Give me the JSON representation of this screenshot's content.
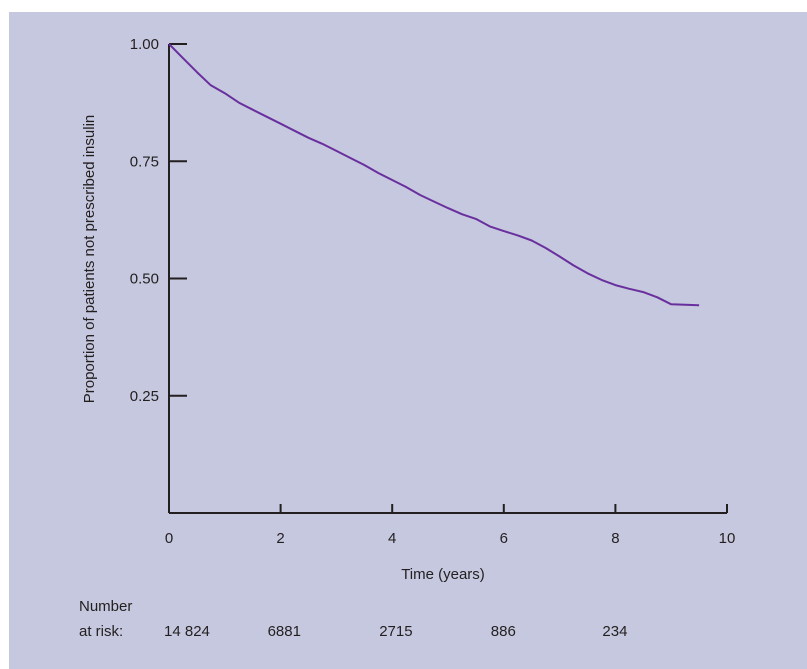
{
  "colors": {
    "background": "#c5c8de",
    "axis": "#231f20",
    "line": "#6a2f9e"
  },
  "chart_data": {
    "type": "line",
    "title": "",
    "xlabel": "Time (years)",
    "ylabel": "Proportion of patients not prescribed insulin",
    "xlim": [
      0,
      10
    ],
    "ylim": [
      0,
      1.0
    ],
    "x_ticks": [
      0,
      2,
      4,
      6,
      8,
      10
    ],
    "x_tick_labels": [
      "0",
      "2",
      "4",
      "6",
      "8",
      "10"
    ],
    "y_ticks": [
      0.25,
      0.5,
      0.75,
      1.0
    ],
    "y_tick_labels": [
      "0.25",
      "0.50",
      "0.75",
      "1.00"
    ],
    "grid": false,
    "series": [
      {
        "x": [
          0,
          0.25,
          0.5,
          0.75,
          1.0,
          1.25,
          1.5,
          1.75,
          2.0,
          2.25,
          2.5,
          2.75,
          3.0,
          3.25,
          3.5,
          3.75,
          4.0,
          4.25,
          4.5,
          4.75,
          5.0,
          5.25,
          5.5,
          5.75,
          6.0,
          6.25,
          6.5,
          6.75,
          7.0,
          7.25,
          7.5,
          7.75,
          8.0,
          8.25,
          8.5,
          8.75,
          9.0,
          9.25,
          9.5
        ],
        "y": [
          1.0,
          0.97,
          0.94,
          0.912,
          0.895,
          0.875,
          0.86,
          0.845,
          0.83,
          0.815,
          0.8,
          0.787,
          0.772,
          0.757,
          0.742,
          0.725,
          0.71,
          0.695,
          0.678,
          0.664,
          0.65,
          0.637,
          0.627,
          0.611,
          0.601,
          0.592,
          0.581,
          0.565,
          0.547,
          0.528,
          0.511,
          0.497,
          0.486,
          0.478,
          0.471,
          0.46,
          0.445,
          0.444,
          0.443
        ]
      }
    ]
  },
  "at_risk": {
    "label_line1": "Number",
    "label_line2": "at risk:",
    "values": [
      "14 824",
      "6881",
      "2715",
      "886",
      "234"
    ]
  }
}
